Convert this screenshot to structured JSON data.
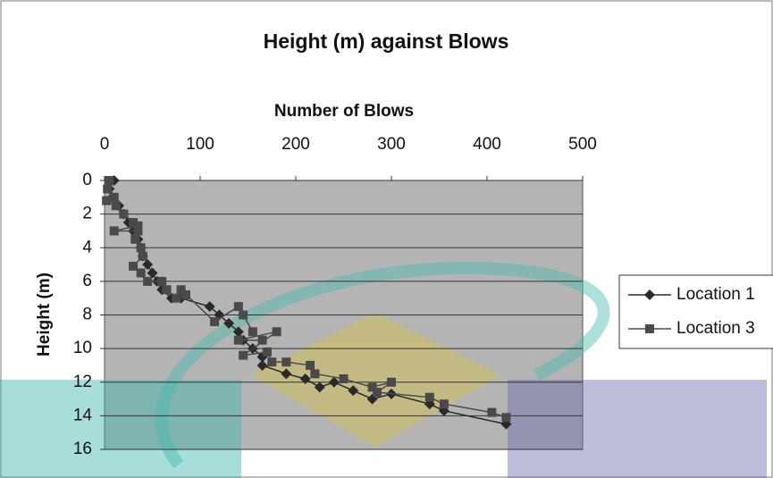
{
  "chart_data": {
    "type": "line",
    "title": "Height (m) against Blows",
    "x_label": "Number of Blows",
    "y_label": "Height (m)",
    "x_axis_position": "top",
    "y_inverted": true,
    "xlim": [
      0,
      500
    ],
    "xticks": [
      0,
      100,
      200,
      300,
      400,
      500
    ],
    "ylim": [
      0,
      16
    ],
    "yticks": [
      0,
      2,
      4,
      6,
      8,
      10,
      12,
      14,
      16
    ],
    "grid": true,
    "legend": "right",
    "series": [
      {
        "name": "Location 1",
        "color": "#2a2a2a",
        "marker": "diamond",
        "x": [
          10,
          5,
          8,
          15,
          20,
          25,
          30,
          35,
          38,
          40,
          45,
          50,
          55,
          60,
          70,
          80,
          110,
          120,
          130,
          140,
          145,
          155,
          165,
          165,
          190,
          210,
          225,
          240,
          260,
          280,
          300,
          340,
          355,
          420
        ],
        "values": [
          0,
          0.5,
          1,
          1.5,
          2,
          2.5,
          3,
          3.5,
          4,
          4.5,
          5,
          5.5,
          6,
          6.5,
          7,
          7,
          7.5,
          8,
          8.5,
          9,
          9.5,
          10,
          10.5,
          11,
          11.5,
          11.8,
          12.3,
          12,
          12.5,
          13,
          12.7,
          13.3,
          13.7,
          14.5
        ]
      },
      {
        "name": "Location 3",
        "color": "#4a4a4a",
        "marker": "square",
        "x": [
          5,
          3,
          10,
          2,
          12,
          20,
          30,
          35,
          10,
          35,
          32,
          38,
          40,
          30,
          38,
          45,
          60,
          65,
          75,
          85,
          80,
          115,
          140,
          145,
          155,
          165,
          140,
          180,
          145,
          170,
          175,
          190,
          215,
          220,
          250,
          280,
          300,
          285,
          340,
          355,
          405,
          420
        ],
        "values": [
          0,
          0.5,
          1,
          1.2,
          1.5,
          2,
          2.5,
          2.7,
          3,
          3,
          3.5,
          4,
          4.5,
          5.1,
          5.5,
          6,
          6,
          6.5,
          7,
          6.8,
          6.5,
          8.4,
          7.5,
          8,
          9,
          9.5,
          9.5,
          9,
          10.4,
          10.2,
          10.8,
          10.8,
          11,
          11.5,
          11.8,
          12.3,
          12,
          12.6,
          12.9,
          13.3,
          13.8,
          14.1
        ]
      }
    ]
  }
}
